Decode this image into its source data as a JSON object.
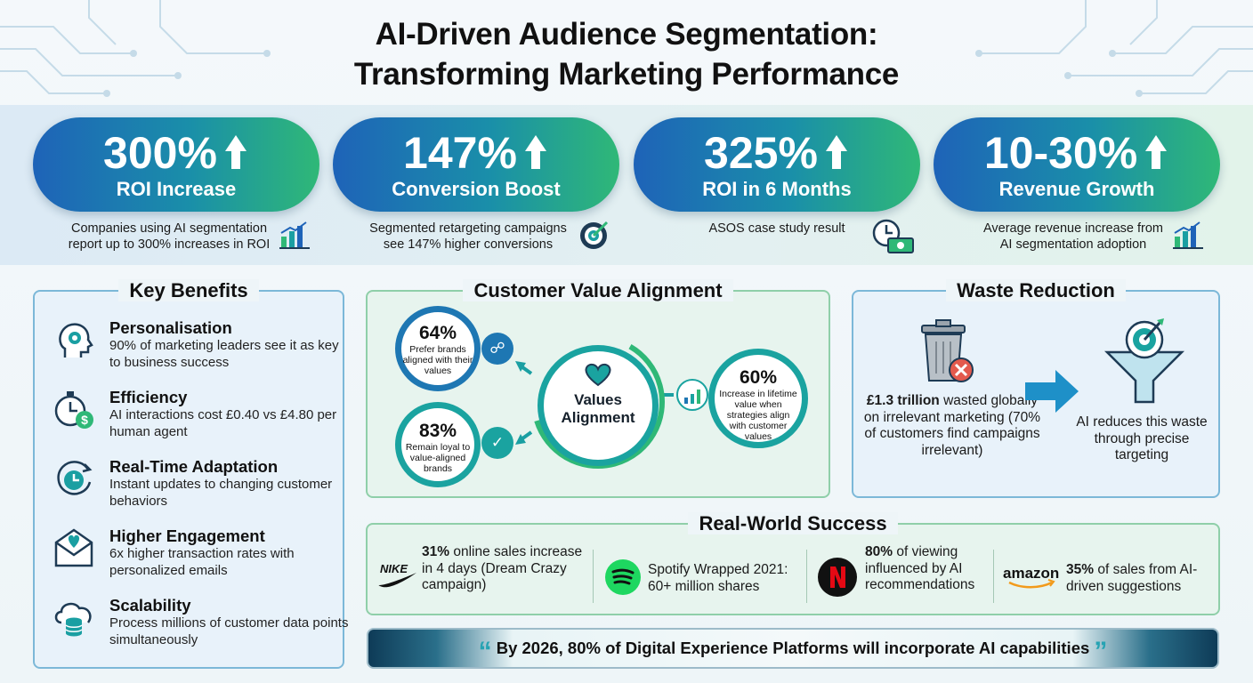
{
  "title": {
    "line1": "AI-Driven Audience Segmentation:",
    "line2": "Transforming Marketing Performance"
  },
  "stats": [
    {
      "value": "300%",
      "label": "ROI Increase",
      "desc1": "Companies using AI segmentation",
      "desc2": "report up to 300% increases in ROI",
      "icon": "bar-chart-icon"
    },
    {
      "value": "147%",
      "label": "Conversion Boost",
      "desc1": "Segmented retargeting campaigns",
      "desc2": "see 147% higher conversions",
      "icon": "target-icon"
    },
    {
      "value": "325%",
      "label": "ROI in 6 Months",
      "desc1": "ASOS case study result",
      "desc2": "",
      "icon": "clock-money-icon"
    },
    {
      "value": "10-30%",
      "label": "Revenue Growth",
      "desc1": "Average revenue increase from",
      "desc2": "AI segmentation adoption",
      "icon": "bar-chart-icon"
    }
  ],
  "benefits": {
    "title": "Key Benefits",
    "items": [
      {
        "title": "Personalisation",
        "desc": "90% of marketing leaders see it as key to business success",
        "icon": "head-gear-icon"
      },
      {
        "title": "Efficiency",
        "desc": "AI interactions cost £0.40 vs £4.80 per human agent",
        "icon": "stopwatch-dollar-icon"
      },
      {
        "title": "Real-Time Adaptation",
        "desc": "Instant updates to changing customer behaviors",
        "icon": "clock-refresh-icon"
      },
      {
        "title": "Higher Engagement",
        "desc": "6x higher transaction rates with personalized emails",
        "icon": "heart-envelope-icon"
      },
      {
        "title": "Scalability",
        "desc": "Process millions of customer data points simultaneously",
        "icon": "cloud-database-icon"
      }
    ]
  },
  "alignment": {
    "title": "Customer Value Alignment",
    "center": {
      "line1": "Values",
      "line2": "Alignment"
    },
    "stat64": {
      "value": "64%",
      "text": "Prefer brands aligned with their values"
    },
    "stat83": {
      "value": "83%",
      "text": "Remain loyal to value-aligned brands"
    },
    "stat60": {
      "value": "60%",
      "text": "Increase in lifetime value when strategies align with customer values"
    }
  },
  "waste": {
    "title": "Waste Reduction",
    "amount": "£1.3 trillion",
    "left_rest": " wasted globally on irrelevant marketing (70% of customers find campaigns irrelevant)",
    "right": "AI reduces this waste through precise targeting"
  },
  "success": {
    "title": "Real-World Success",
    "items": [
      {
        "brand": "NIKE",
        "bold": "31%",
        "text": " online sales increase in 4 days (Dream Crazy campaign)"
      },
      {
        "brand": "Spotify",
        "bold": "",
        "text": "Spotify Wrapped 2021: 60+ million shares"
      },
      {
        "brand": "Netflix",
        "bold": "80%",
        "text": " of viewing influenced by AI recommendations"
      },
      {
        "brand": "amazon",
        "bold": "35%",
        "text": " of sales from AI-driven suggestions"
      }
    ]
  },
  "quote": "By 2026, 80% of Digital Experience Platforms will incorporate AI capabilities",
  "colors": {
    "blue": "#1e63b8",
    "teal": "#1a9fa2",
    "green": "#2fb877",
    "red": "#d42027"
  }
}
